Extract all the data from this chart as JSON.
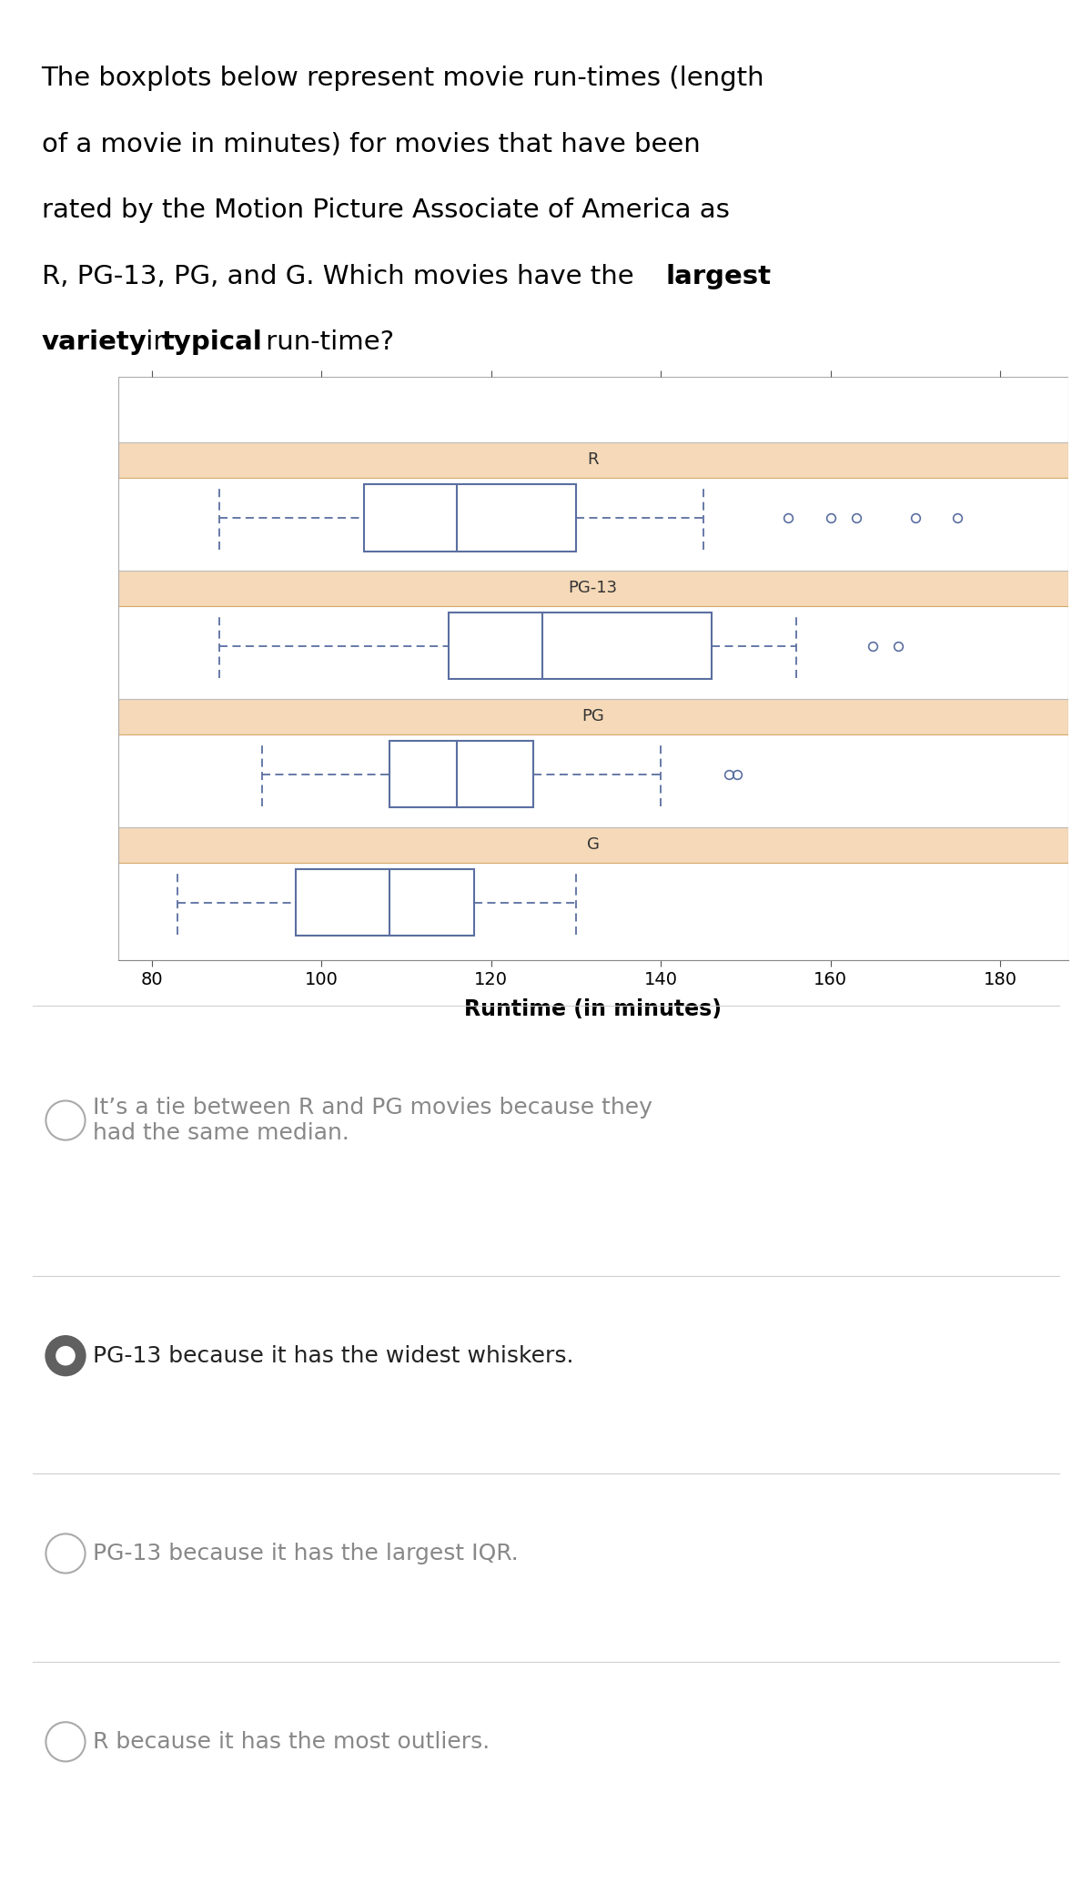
{
  "xlabel": "Runtime (in minutes)",
  "xlim": [
    76,
    188
  ],
  "xticks": [
    80,
    100,
    120,
    140,
    160,
    180
  ],
  "ratings": [
    "R",
    "PG-13",
    "PG",
    "G"
  ],
  "header_color": "#f5d9b8",
  "header_edge_color": "#d4a96a",
  "box_edge_color": "#5a6ea0",
  "whisker_color": "#5a6ea0",
  "plot_bg_color": "#ffffff",
  "outer_bg_color": "#ffffff",
  "separator_color": "#d0d0d0",
  "boxplot_data": {
    "R": {
      "whislo": 88,
      "q1": 105,
      "med": 116,
      "q3": 130,
      "whishi": 145,
      "fliers": [
        155,
        160,
        163,
        170,
        175
      ]
    },
    "PG-13": {
      "whislo": 88,
      "q1": 115,
      "med": 126,
      "q3": 146,
      "whishi": 156,
      "fliers": [
        165,
        168
      ]
    },
    "PG": {
      "whislo": 93,
      "q1": 108,
      "med": 116,
      "q3": 125,
      "whishi": 140,
      "fliers": [
        148,
        149
      ]
    },
    "G": {
      "whislo": 83,
      "q1": 97,
      "med": 108,
      "q3": 118,
      "whishi": 130,
      "fliers": []
    }
  },
  "answer_options": [
    {
      "text": "It’s a tie between R and PG movies because they\nhad the same median.",
      "selected": false,
      "text_color": "#888888"
    },
    {
      "text": "PG-13 because it has the widest whiskers.",
      "selected": true,
      "text_color": "#222222"
    },
    {
      "text": "PG-13 because it has the largest IQR.",
      "selected": false,
      "text_color": "#888888"
    },
    {
      "text": "R because it has the most outliers.",
      "selected": false,
      "text_color": "#888888"
    }
  ],
  "fig_width": 12.0,
  "fig_height": 20.69,
  "question_fontsize": 21,
  "answer_fontsize": 18,
  "chart_label_fontsize": 14,
  "xlabel_fontsize": 17
}
